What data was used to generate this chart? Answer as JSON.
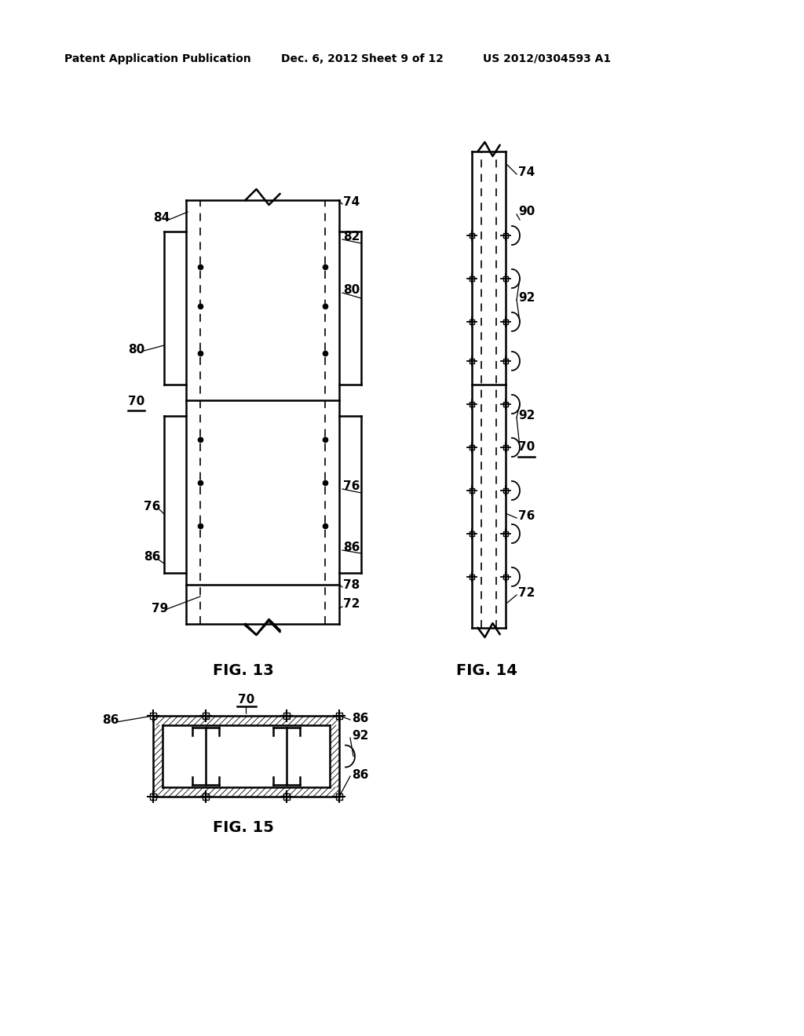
{
  "bg_color": "#ffffff",
  "header_text": "Patent Application Publication",
  "header_date": "Dec. 6, 2012",
  "header_sheet": "Sheet 9 of 12",
  "header_patent": "US 2012/0304593 A1",
  "fig13_label": "FIG. 13",
  "fig14_label": "FIG. 14",
  "fig15_label": "FIG. 15",
  "lw": 1.8
}
